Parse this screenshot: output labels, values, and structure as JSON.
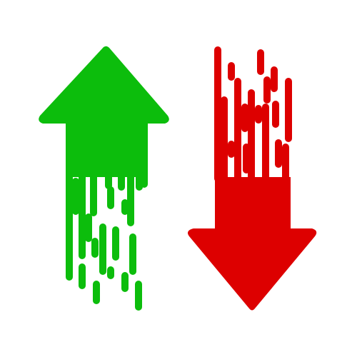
{
  "icons": [
    {
      "name": "up-arrow-icon",
      "color": "#0cbd0c",
      "direction": "up"
    },
    {
      "name": "down-arrow-icon",
      "color": "#dd0000",
      "direction": "down"
    }
  ],
  "background": "#ffffff"
}
